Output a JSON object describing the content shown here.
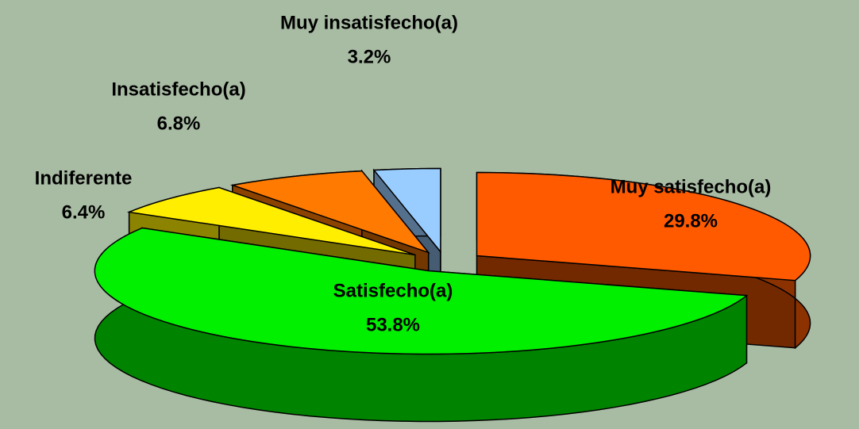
{
  "chart_data": {
    "type": "pie",
    "categories": [
      "Muy satisfecho(a)",
      "Satisfecho(a)",
      "Indiferente",
      "Insatisfecho(a)",
      "Muy insatisfecho(a)"
    ],
    "values": [
      29.8,
      53.8,
      6.4,
      6.8,
      3.2
    ],
    "value_labels": [
      "29.8%",
      "53.8%",
      "6.4%",
      "6.8%",
      "3.2%"
    ],
    "colors": [
      "#ff5a00",
      "#00f000",
      "#ffee00",
      "#ff7a00",
      "#99ccff"
    ]
  }
}
